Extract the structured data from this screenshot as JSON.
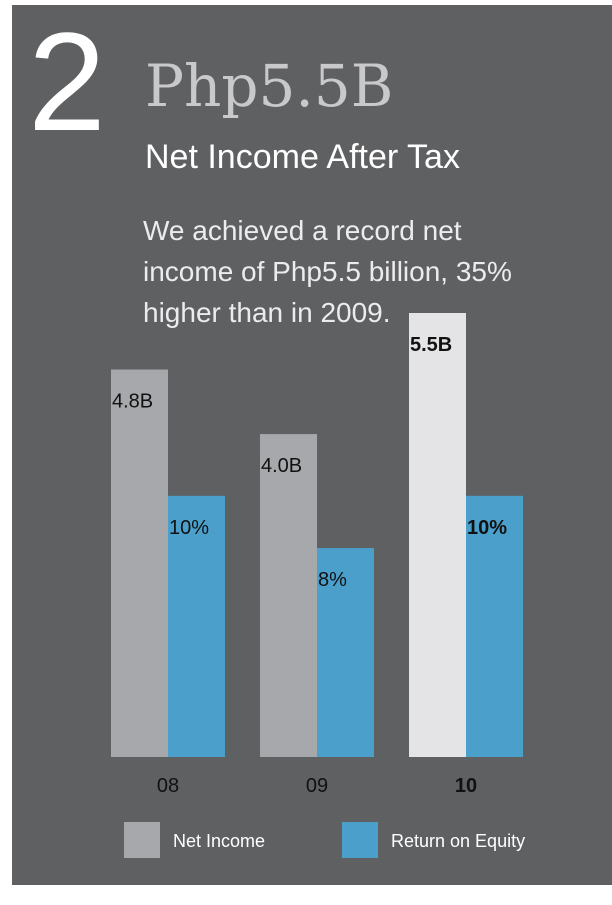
{
  "chart_data": {
    "type": "bar",
    "number": "2",
    "title": "Php5.5B",
    "subtitle": "Net Income After Tax",
    "description": [
      "We achieved a record net",
      "income of Php5.5 billion, 35%",
      "higher than in 2009."
    ],
    "categories": [
      "08",
      "09",
      "10"
    ],
    "highlight": 2,
    "series": [
      {
        "name": "Net Income",
        "color": "#a7a8ab",
        "highlight_color": "#e4e4e6",
        "values": [
          4.8,
          4.0,
          5.5
        ],
        "value_labels": [
          "4.8B",
          "4.0B",
          "5.5B"
        ]
      },
      {
        "name": "Return on Equity",
        "color": "#4a9fcb",
        "axis": "y2",
        "values": [
          10,
          8,
          10
        ],
        "value_labels": [
          "10%",
          "8%",
          "10%"
        ]
      }
    ],
    "ylim": [
      0,
      5.5
    ],
    "y2lim": [
      0,
      17
    ]
  }
}
